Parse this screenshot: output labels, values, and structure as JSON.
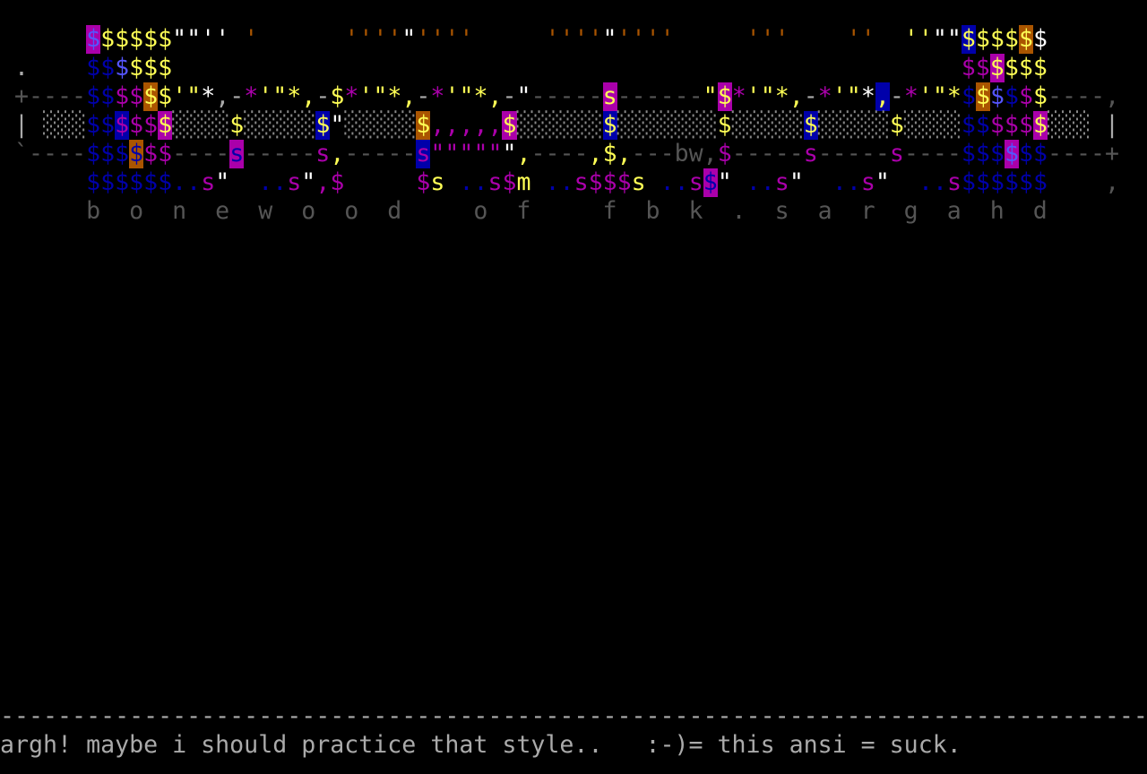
{
  "art": {
    "rows": [
      [
        {
          "text": "      ",
          "fg": "#aaaaaa"
        },
        {
          "text": "$",
          "fg": "#5555ff",
          "bg": "#aa00aa"
        },
        {
          "text": "$$$$$",
          "fg": "#ffff55"
        },
        {
          "text": "\"\"''",
          "fg": "#ffffff"
        },
        {
          "text": " ",
          "fg": "#aaaaaa"
        },
        {
          "text": "'",
          "fg": "#aa5500"
        },
        {
          "text": "      ",
          "fg": "#aaaaaa"
        },
        {
          "text": "''''",
          "fg": "#aa5500"
        },
        {
          "text": "\"",
          "fg": "#ffffff"
        },
        {
          "text": "''''",
          "fg": "#aa5500"
        },
        {
          "text": "     ",
          "fg": "#aaaaaa"
        },
        {
          "text": "''''",
          "fg": "#aa5500"
        },
        {
          "text": "\"",
          "fg": "#ffffff"
        },
        {
          "text": "''''",
          "fg": "#aa5500"
        },
        {
          "text": "     ",
          "fg": "#aaaaaa"
        },
        {
          "text": "'''",
          "fg": "#aa5500"
        },
        {
          "text": "    ",
          "fg": "#aaaaaa"
        },
        {
          "text": "''",
          "fg": "#aa5500"
        },
        {
          "text": "  ",
          "fg": "#aaaaaa"
        },
        {
          "text": "''",
          "fg": "#ffff55"
        },
        {
          "text": "\"\"",
          "fg": "#ffffff"
        },
        {
          "text": "$",
          "fg": "#ffff55",
          "bg": "#0000aa"
        },
        {
          "text": "$$$",
          "fg": "#ffff55"
        },
        {
          "text": "$",
          "fg": "#ffff55",
          "bg": "#aa5500"
        },
        {
          "text": "$",
          "fg": "#ffffff"
        }
      ],
      [
        {
          "text": " .    ",
          "fg": "#aaaaaa"
        },
        {
          "text": "$$",
          "fg": "#0000aa"
        },
        {
          "text": "$",
          "fg": "#5555ff"
        },
        {
          "text": "$$$",
          "fg": "#ffff55"
        },
        {
          "text": "                                                       ",
          "fg": "#aaaaaa"
        },
        {
          "text": "$$",
          "fg": "#aa00aa"
        },
        {
          "text": "$",
          "fg": "#ffff55",
          "bg": "#aa00aa"
        },
        {
          "text": "$$$",
          "fg": "#ffff55"
        }
      ],
      [
        {
          "text": " +----",
          "fg": "#555555"
        },
        {
          "text": "$$",
          "fg": "#0000aa"
        },
        {
          "text": "$$",
          "fg": "#aa00aa"
        },
        {
          "text": "$",
          "fg": "#ffff55",
          "bg": "#aa5500"
        },
        {
          "text": "$'\"",
          "fg": "#ffff55"
        },
        {
          "text": "*",
          "fg": "#ffffff"
        },
        {
          "text": ",-",
          "fg": "#aaaaaa"
        },
        {
          "text": "*",
          "fg": "#aa00aa"
        },
        {
          "text": "'\"*,",
          "fg": "#ffff55"
        },
        {
          "text": "-",
          "fg": "#aaaaaa"
        },
        {
          "text": "$",
          "fg": "#ffff55"
        },
        {
          "text": "*",
          "fg": "#aa00aa"
        },
        {
          "text": "'\"*,",
          "fg": "#ffff55"
        },
        {
          "text": "-",
          "fg": "#aaaaaa"
        },
        {
          "text": "*",
          "fg": "#aa00aa"
        },
        {
          "text": "'\"*,",
          "fg": "#ffff55"
        },
        {
          "text": "-",
          "fg": "#aaaaaa"
        },
        {
          "text": "\"",
          "fg": "#ffffff"
        },
        {
          "text": "-----",
          "fg": "#555555"
        },
        {
          "text": "s",
          "fg": "#ffff55",
          "bg": "#aa00aa"
        },
        {
          "text": "------",
          "fg": "#555555"
        },
        {
          "text": "\"",
          "fg": "#ffff55"
        },
        {
          "text": "$",
          "fg": "#ffff55",
          "bg": "#aa00aa"
        },
        {
          "text": "*",
          "fg": "#aa00aa"
        },
        {
          "text": "'\"*,",
          "fg": "#ffff55"
        },
        {
          "text": "-",
          "fg": "#aaaaaa"
        },
        {
          "text": "*",
          "fg": "#aa00aa"
        },
        {
          "text": "'\"",
          "fg": "#ffff55"
        },
        {
          "text": "*",
          "fg": "#ffffff"
        },
        {
          "text": ",",
          "fg": "#ffff55",
          "bg": "#0000aa"
        },
        {
          "text": "-",
          "fg": "#aaaaaa"
        },
        {
          "text": "*",
          "fg": "#aa00aa"
        },
        {
          "text": "'\"*",
          "fg": "#ffff55"
        },
        {
          "text": "$",
          "fg": "#0000aa"
        },
        {
          "text": "$",
          "fg": "#ffff55",
          "bg": "#aa5500"
        },
        {
          "text": "$",
          "fg": "#5555ff"
        },
        {
          "text": "$",
          "fg": "#0000aa"
        },
        {
          "text": "$",
          "fg": "#aa00aa"
        },
        {
          "text": "$",
          "fg": "#ffff55"
        },
        {
          "text": "----,",
          "fg": "#555555"
        }
      ],
      [
        {
          "text": " | ",
          "fg": "#aaaaaa"
        },
        {
          "text": "░░░",
          "fg": "#888888"
        },
        {
          "text": "$$",
          "fg": "#0000aa"
        },
        {
          "text": "$",
          "fg": "#aa00aa",
          "bg": "#0000aa"
        },
        {
          "text": "$$",
          "fg": "#aa00aa"
        },
        {
          "text": "$",
          "fg": "#ffff55",
          "bg": "#aa00aa"
        },
        {
          "text": "░░░░",
          "fg": "#888888"
        },
        {
          "text": "$",
          "fg": "#ffff55"
        },
        {
          "text": "░░░░░",
          "fg": "#888888"
        },
        {
          "text": "$",
          "fg": "#ffff55",
          "bg": "#0000aa"
        },
        {
          "text": "\"",
          "fg": "#ffffff"
        },
        {
          "text": "░░░░░",
          "fg": "#888888"
        },
        {
          "text": "$",
          "fg": "#ffff55",
          "bg": "#aa5500"
        },
        {
          "text": ",,,,,",
          "fg": "#aa00aa"
        },
        {
          "text": "$",
          "fg": "#ffff55",
          "bg": "#aa00aa"
        },
        {
          "text": "░░░░░░",
          "fg": "#888888"
        },
        {
          "text": "$",
          "fg": "#ffff55",
          "bg": "#0000aa"
        },
        {
          "text": "░░░░░░░",
          "fg": "#888888"
        },
        {
          "text": "$",
          "fg": "#ffff55"
        },
        {
          "text": "░░░░░",
          "fg": "#888888"
        },
        {
          "text": "$",
          "fg": "#ffff55",
          "bg": "#0000aa"
        },
        {
          "text": "░░░░░",
          "fg": "#888888"
        },
        {
          "text": "$",
          "fg": "#ffff55"
        },
        {
          "text": "░░░░",
          "fg": "#888888"
        },
        {
          "text": "$$",
          "fg": "#0000aa"
        },
        {
          "text": "$$$",
          "fg": "#aa00aa"
        },
        {
          "text": "$",
          "fg": "#ffff55",
          "bg": "#aa00aa"
        },
        {
          "text": "░░░",
          "fg": "#888888"
        },
        {
          "text": " |",
          "fg": "#aaaaaa"
        }
      ],
      [
        {
          "text": " `----",
          "fg": "#555555"
        },
        {
          "text": "$$$",
          "fg": "#0000aa"
        },
        {
          "text": "$",
          "fg": "#0000aa",
          "bg": "#aa5500"
        },
        {
          "text": "$$",
          "fg": "#aa00aa"
        },
        {
          "text": "----",
          "fg": "#555555"
        },
        {
          "text": "s",
          "fg": "#0000aa",
          "bg": "#aa00aa"
        },
        {
          "text": "-----",
          "fg": "#555555"
        },
        {
          "text": "s",
          "fg": "#aa00aa"
        },
        {
          "text": ",",
          "fg": "#ffff55"
        },
        {
          "text": "-----",
          "fg": "#555555"
        },
        {
          "text": "s",
          "fg": "#aa00aa",
          "bg": "#0000aa"
        },
        {
          "text": "\"\"\"\"\"",
          "fg": "#aa00aa"
        },
        {
          "text": "\"",
          "fg": "#ffffff"
        },
        {
          "text": ",",
          "fg": "#ffff55"
        },
        {
          "text": "----",
          "fg": "#555555"
        },
        {
          "text": ",",
          "fg": "#ffff55"
        },
        {
          "text": "$",
          "fg": "#ffff55"
        },
        {
          "text": ",",
          "fg": "#ffff55"
        },
        {
          "text": "---",
          "fg": "#555555"
        },
        {
          "text": "bw",
          "fg": "#555555"
        },
        {
          "text": ",",
          "fg": "#555555"
        },
        {
          "text": "$",
          "fg": "#aa00aa"
        },
        {
          "text": "-----",
          "fg": "#555555"
        },
        {
          "text": "s",
          "fg": "#aa00aa"
        },
        {
          "text": "-----",
          "fg": "#555555"
        },
        {
          "text": "s",
          "fg": "#aa00aa"
        },
        {
          "text": "----",
          "fg": "#555555"
        },
        {
          "text": "$$$",
          "fg": "#0000aa"
        },
        {
          "text": "$",
          "fg": "#5555ff",
          "bg": "#aa00aa"
        },
        {
          "text": "$$",
          "fg": "#0000aa"
        },
        {
          "text": "----+",
          "fg": "#555555"
        }
      ],
      [
        {
          "text": "      ",
          "fg": "#aaaaaa"
        },
        {
          "text": "$$$$$$",
          "fg": "#0000aa"
        },
        {
          "text": "..",
          "fg": "#0000aa"
        },
        {
          "text": "s",
          "fg": "#aa00aa"
        },
        {
          "text": "\"",
          "fg": "#ffffff"
        },
        {
          "text": "  ",
          "fg": "#aaaaaa"
        },
        {
          "text": "..",
          "fg": "#0000aa"
        },
        {
          "text": "s",
          "fg": "#aa00aa"
        },
        {
          "text": "\"",
          "fg": "#ffffff"
        },
        {
          "text": ",",
          "fg": "#aa00aa"
        },
        {
          "text": "$",
          "fg": "#aa00aa"
        },
        {
          "text": "     ",
          "fg": "#aaaaaa"
        },
        {
          "text": "$",
          "fg": "#aa00aa"
        },
        {
          "text": "s",
          "fg": "#ffff55"
        },
        {
          "text": " ",
          "fg": "#aaaaaa"
        },
        {
          "text": "..",
          "fg": "#0000aa"
        },
        {
          "text": "s",
          "fg": "#aa00aa"
        },
        {
          "text": "$",
          "fg": "#aa00aa"
        },
        {
          "text": "m",
          "fg": "#ffff55"
        },
        {
          "text": " ",
          "fg": "#aaaaaa"
        },
        {
          "text": "..",
          "fg": "#0000aa"
        },
        {
          "text": "s",
          "fg": "#aa00aa"
        },
        {
          "text": "$$$",
          "fg": "#aa00aa"
        },
        {
          "text": "s",
          "fg": "#ffff55"
        },
        {
          "text": " ",
          "fg": "#aaaaaa"
        },
        {
          "text": "..",
          "fg": "#0000aa"
        },
        {
          "text": "s",
          "fg": "#aa00aa"
        },
        {
          "text": "$",
          "fg": "#0000aa",
          "bg": "#aa00aa"
        },
        {
          "text": "\"",
          "fg": "#ffffff"
        },
        {
          "text": " ",
          "fg": "#aaaaaa"
        },
        {
          "text": "..",
          "fg": "#0000aa"
        },
        {
          "text": "s",
          "fg": "#aa00aa"
        },
        {
          "text": "\"",
          "fg": "#ffffff"
        },
        {
          "text": "  ",
          "fg": "#aaaaaa"
        },
        {
          "text": "..",
          "fg": "#0000aa"
        },
        {
          "text": "s",
          "fg": "#aa00aa"
        },
        {
          "text": "\"",
          "fg": "#ffffff"
        },
        {
          "text": "  ",
          "fg": "#aaaaaa"
        },
        {
          "text": "..",
          "fg": "#0000aa"
        },
        {
          "text": "s",
          "fg": "#aa00aa"
        },
        {
          "text": "$$$$$$",
          "fg": "#0000aa"
        },
        {
          "text": "    ,",
          "fg": "#555555"
        }
      ],
      [
        {
          "text": "      b  o  n  e  w  o  o  d     o  f     f  b  k  .  s  a  r  g  a  h  d",
          "fg": "#555555"
        }
      ]
    ]
  },
  "footer": {
    "rule": "--------------------------------------------------------------------------------",
    "message": "argh! maybe i should practice that style..   :-)= this ansi = suck."
  }
}
